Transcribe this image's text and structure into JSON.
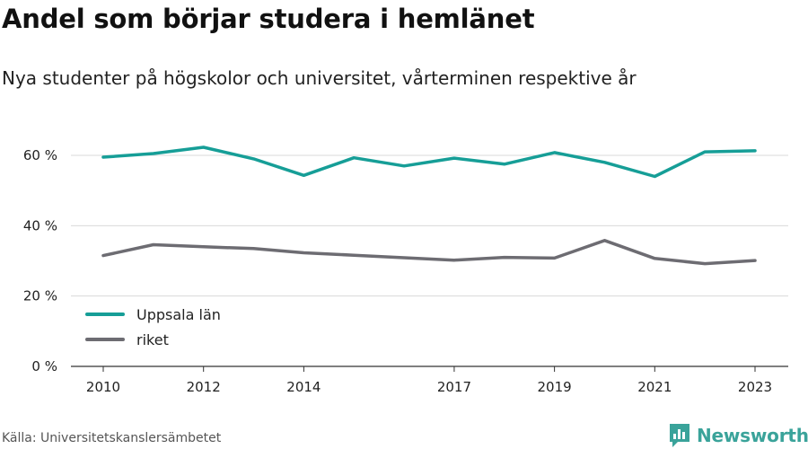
{
  "header": {
    "title": "Andel som börjar studera i hemlänet",
    "subtitle": "Nya studenter på högskolor och universitet, vårterminen respektive år"
  },
  "footer": {
    "source": "Källa: Universitetskanslersämbetet",
    "brand": "Newsworthy",
    "brand_icon": "bar-chart-icon",
    "brand_color": "#3aa39a"
  },
  "chart_data": {
    "type": "line",
    "title": "Andel som börjar studera i hemlänet",
    "subtitle": "Nya studenter på högskolor och universitet, vårterminen respektive år",
    "xlabel": "",
    "ylabel": "",
    "x": [
      2010,
      2011,
      2012,
      2013,
      2014,
      2015,
      2016,
      2017,
      2018,
      2019,
      2020,
      2021,
      2022,
      2023
    ],
    "xticks": [
      "2010",
      "2012",
      "2014",
      "2017",
      "2019",
      "2021",
      "2023"
    ],
    "yticks": [
      "0 %",
      "20 %",
      "40 %",
      "60 %"
    ],
    "ylim": [
      0,
      60
    ],
    "grid": true,
    "legend_position": "bottom-left",
    "series": [
      {
        "name": "Uppsala län",
        "color": "#169e97",
        "values": [
          59.5,
          60.5,
          62.3,
          59.0,
          54.3,
          59.3,
          57.0,
          59.2,
          57.5,
          60.8,
          58.0,
          54.0,
          61.0,
          61.3
        ]
      },
      {
        "name": "riket",
        "color": "#6d6c72",
        "values": [
          31.5,
          34.6,
          34.0,
          33.5,
          32.3,
          31.6,
          30.9,
          30.2,
          31.0,
          30.8,
          35.8,
          30.7,
          29.2,
          30.1
        ]
      }
    ]
  }
}
